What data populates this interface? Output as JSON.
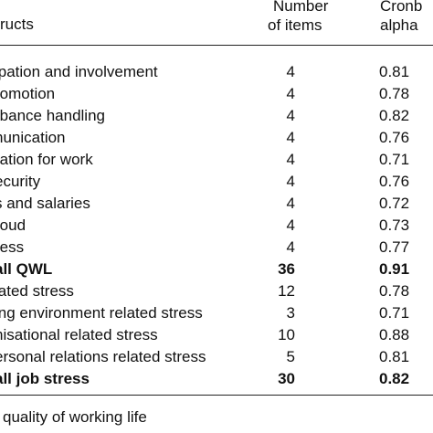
{
  "table": {
    "headers": {
      "construct": "ructs",
      "items_line1": "Number",
      "items_line2": "of items",
      "alpha_line1": "Cronb",
      "alpha_line2": "alpha"
    },
    "rows": [
      {
        "construct": "ipation and involvement",
        "items": "4",
        "alpha": "0.81",
        "bold": false
      },
      {
        "construct": "romotion",
        "items": "4",
        "alpha": "0.78",
        "bold": false
      },
      {
        "construct": "rbance handling",
        "items": "4",
        "alpha": "0.82",
        "bold": false
      },
      {
        "construct": "nunication",
        "items": "4",
        "alpha": "0.76",
        "bold": false
      },
      {
        "construct": "ration for work",
        "items": "4",
        "alpha": "0.71",
        "bold": false
      },
      {
        "construct": "ecurity",
        "items": "4",
        "alpha": "0.76",
        "bold": false
      },
      {
        "construct": "s and salaries",
        "items": "4",
        "alpha": "0.72",
        "bold": false
      },
      {
        "construct": "roud",
        "items": "4",
        "alpha": "0.73",
        "bold": false
      },
      {
        "construct": "ress",
        "items": "4",
        "alpha": "0.77",
        "bold": false
      },
      {
        "construct": "all QWL",
        "items": "36",
        "alpha": "0.91",
        "bold": true
      },
      {
        "construct": "lated stress",
        "items": "12",
        "alpha": "0.78",
        "bold": false
      },
      {
        "construct": "ing environment related stress",
        "items": "3",
        "alpha": "0.71",
        "bold": false
      },
      {
        "construct": "nisational related stress",
        "items": "10",
        "alpha": "0.88",
        "bold": false
      },
      {
        "construct": "ersonal relations related stress",
        "items": "5",
        "alpha": "0.81",
        "bold": false
      },
      {
        "construct": "all job stress",
        "items": "30",
        "alpha": "0.82",
        "bold": true
      }
    ]
  },
  "footnote": "quality of working life"
}
